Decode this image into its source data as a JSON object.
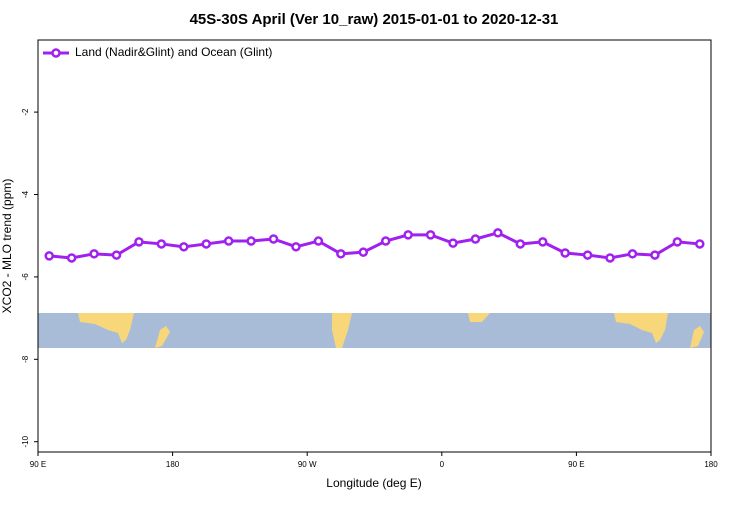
{
  "chart_data": {
    "type": "line",
    "title": "45S-30S April (Ver 10_raw)   2015-01-01 to 2020-12-31",
    "xlabel": "Longitude (deg E)",
    "ylabel": "XCO2 - MLO trend (ppm)",
    "x": [
      97.5,
      112.5,
      127.5,
      142.5,
      157.5,
      172.5,
      187.5,
      202.5,
      217.5,
      232.5,
      247.5,
      262.5,
      277.5,
      292.5,
      307.5,
      322.5,
      337.5,
      352.5,
      367.5,
      382.5,
      397.5,
      412.5,
      427.5,
      442.5,
      457.5,
      472.5,
      487.5,
      502.5,
      517.5,
      532.5
    ],
    "series": [
      {
        "name": "Land (Nadir&Glint) and Ocean (Glint)",
        "color": "#a020f0",
        "values": [
          -5.49,
          -5.54,
          -5.44,
          -5.47,
          -5.15,
          -5.2,
          -5.27,
          -5.2,
          -5.13,
          -5.13,
          -5.08,
          -5.27,
          -5.13,
          -5.44,
          -5.4,
          -5.13,
          -4.98,
          -4.98,
          -5.18,
          -5.08,
          -4.93,
          -5.2,
          -5.15,
          -5.42,
          -5.47,
          -5.54,
          -5.44,
          -5.47,
          -5.15,
          -5.2
        ]
      }
    ],
    "xlim": [
      90,
      540
    ],
    "xticks": [
      {
        "value": 90,
        "label": "90 E"
      },
      {
        "value": 180,
        "label": "180"
      },
      {
        "value": 270,
        "label": "90 W"
      },
      {
        "value": 360,
        "label": "0"
      },
      {
        "value": 450,
        "label": "90 E"
      },
      {
        "value": 540,
        "label": "180"
      }
    ],
    "ylim": [
      -10.25,
      -0.25
    ],
    "yticks": [
      -2,
      -4,
      -6,
      -8,
      -10
    ],
    "legend": "upper left"
  }
}
